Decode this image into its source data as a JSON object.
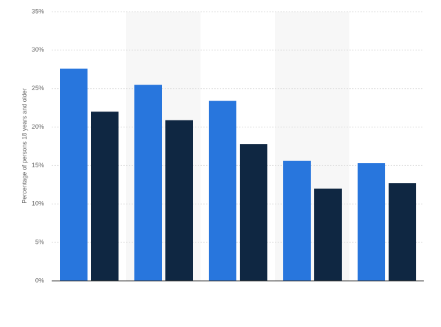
{
  "chart_data": {
    "type": "bar",
    "y_label": "Percentage of persons 18 years and older",
    "categories": [
      null,
      null,
      null,
      null,
      null
    ],
    "series": [
      {
        "color": "#2876dd",
        "values": [
          27.6,
          25.5,
          23.4,
          15.6,
          15.3
        ]
      },
      {
        "color": "#0f2742",
        "values": [
          22.0,
          20.9,
          17.8,
          12.0,
          12.7
        ]
      }
    ],
    "ylim": [
      0,
      35
    ],
    "yticks": [
      {
        "value": 0,
        "label": "0%"
      },
      {
        "value": 5,
        "label": "5%"
      },
      {
        "value": 10,
        "label": "10%"
      },
      {
        "value": 15,
        "label": "15%"
      },
      {
        "value": 20,
        "label": "20%"
      },
      {
        "value": 25,
        "label": "25%"
      },
      {
        "value": 30,
        "label": "30%"
      },
      {
        "value": 35,
        "label": "35%"
      }
    ],
    "grid": true
  }
}
